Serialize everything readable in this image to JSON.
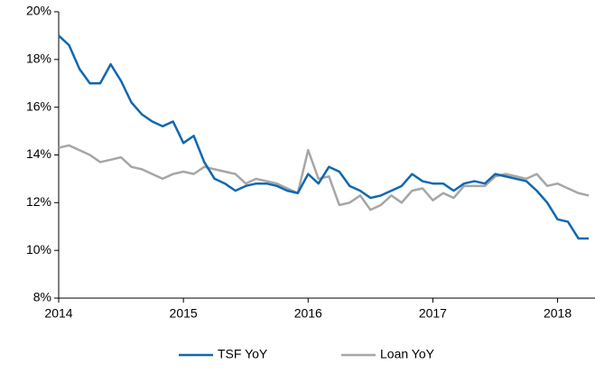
{
  "chart_data": {
    "type": "line",
    "x": [
      2014,
      2014.083,
      2014.167,
      2014.25,
      2014.333,
      2014.417,
      2014.5,
      2014.583,
      2014.667,
      2014.75,
      2014.833,
      2014.917,
      2015,
      2015.083,
      2015.167,
      2015.25,
      2015.333,
      2015.417,
      2015.5,
      2015.583,
      2015.667,
      2015.75,
      2015.833,
      2015.917,
      2016,
      2016.083,
      2016.167,
      2016.25,
      2016.333,
      2016.417,
      2016.5,
      2016.583,
      2016.667,
      2016.75,
      2016.833,
      2016.917,
      2017,
      2017.083,
      2017.167,
      2017.25,
      2017.333,
      2017.417,
      2017.5,
      2017.583,
      2017.667,
      2017.75,
      2017.833,
      2017.917,
      2018,
      2018.083,
      2018.167,
      2018.25
    ],
    "series": [
      {
        "name": "TSF YoY",
        "color": "#1068b0",
        "values": [
          19.0,
          18.6,
          17.6,
          17.0,
          17.0,
          17.8,
          17.1,
          16.2,
          15.7,
          15.4,
          15.2,
          15.4,
          14.5,
          14.8,
          13.7,
          13.0,
          12.8,
          12.5,
          12.7,
          12.8,
          12.8,
          12.7,
          12.5,
          12.4,
          13.2,
          12.8,
          13.5,
          13.3,
          12.7,
          12.5,
          12.2,
          12.3,
          12.5,
          12.7,
          13.2,
          12.9,
          12.8,
          12.8,
          12.5,
          12.8,
          12.9,
          12.8,
          13.2,
          13.1,
          13.0,
          12.9,
          12.5,
          12.0,
          11.3,
          11.2,
          10.5,
          10.5
        ]
      },
      {
        "name": "Loan YoY",
        "color": "#a6a6a6",
        "values": [
          14.3,
          14.4,
          14.2,
          14.0,
          13.7,
          13.8,
          13.9,
          13.5,
          13.4,
          13.2,
          13.0,
          13.2,
          13.3,
          13.2,
          13.5,
          13.4,
          13.3,
          13.2,
          12.8,
          13.0,
          12.9,
          12.8,
          12.6,
          12.4,
          14.2,
          13.0,
          13.1,
          11.9,
          12.0,
          12.3,
          11.7,
          11.9,
          12.3,
          12.0,
          12.5,
          12.6,
          12.1,
          12.4,
          12.2,
          12.7,
          12.7,
          12.7,
          13.1,
          13.2,
          13.1,
          13.0,
          13.2,
          12.7,
          12.8,
          12.6,
          12.4,
          12.3
        ]
      }
    ],
    "xlim": [
      2014,
      2018.3
    ],
    "xticks": [
      2014,
      2015,
      2016,
      2017,
      2018
    ],
    "ylim": [
      8,
      20
    ],
    "yticks": [
      {
        "value": 8,
        "label": "8%"
      },
      {
        "value": 10,
        "label": "10%"
      },
      {
        "value": 12,
        "label": "12%"
      },
      {
        "value": 14,
        "label": "14%"
      },
      {
        "value": 16,
        "label": "16%"
      },
      {
        "value": 18,
        "label": "18%"
      },
      {
        "value": 20,
        "label": "20%"
      }
    ],
    "legend": "bottom"
  }
}
